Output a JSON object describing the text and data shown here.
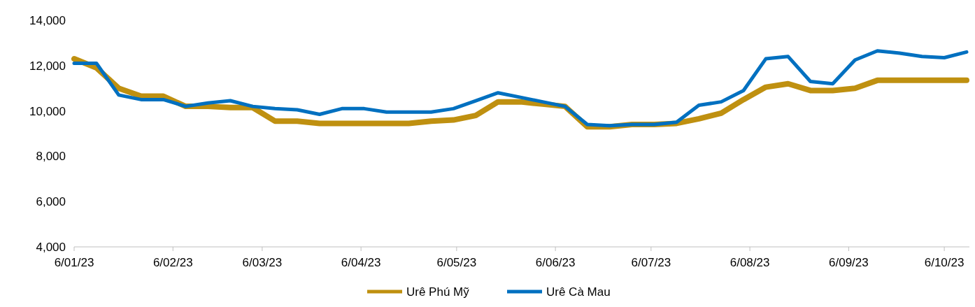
{
  "chart_data": {
    "type": "line",
    "x": [
      "2023-01-06",
      "2023-01-13",
      "2023-01-20",
      "2023-01-27",
      "2023-02-03",
      "2023-02-10",
      "2023-02-17",
      "2023-02-24",
      "2023-03-03",
      "2023-03-10",
      "2023-03-17",
      "2023-03-24",
      "2023-03-31",
      "2023-04-07",
      "2023-04-14",
      "2023-04-21",
      "2023-04-28",
      "2023-05-05",
      "2023-05-12",
      "2023-05-19",
      "2023-05-26",
      "2023-06-02",
      "2023-06-09",
      "2023-06-16",
      "2023-06-23",
      "2023-06-30",
      "2023-07-07",
      "2023-07-14",
      "2023-07-21",
      "2023-07-28",
      "2023-08-04",
      "2023-08-11",
      "2023-08-18",
      "2023-08-25",
      "2023-09-01",
      "2023-09-08",
      "2023-09-15",
      "2023-09-22",
      "2023-09-29",
      "2023-10-06",
      "2023-10-13"
    ],
    "series": [
      {
        "name": "Urê Phú Mỹ",
        "color": "#bf9010",
        "values": [
          12300,
          11900,
          11000,
          10650,
          10650,
          10200,
          10200,
          10150,
          10150,
          9550,
          9550,
          9450,
          9450,
          9450,
          9450,
          9450,
          9550,
          9600,
          9800,
          10400,
          10400,
          10300,
          10200,
          9300,
          9300,
          9400,
          9400,
          9450,
          9650,
          9900,
          10500,
          11050,
          11200,
          10900,
          10900,
          11000,
          11350,
          11350,
          11350,
          11350,
          11350
        ]
      },
      {
        "name": "Urê Cà Mau",
        "color": "#0070c0",
        "values": [
          12100,
          12100,
          10700,
          10500,
          10500,
          10200,
          10350,
          10450,
          10200,
          10100,
          10050,
          9850,
          10100,
          10100,
          9950,
          9950,
          9950,
          10100,
          10450,
          10800,
          10600,
          10400,
          10200,
          9400,
          9350,
          9400,
          9400,
          9500,
          10250,
          10400,
          10900,
          12300,
          12400,
          11300,
          11200,
          12250,
          12650,
          12550,
          12400,
          12350,
          12600
        ]
      }
    ],
    "xlim": [
      "2023-01-06",
      "2023-10-13"
    ],
    "xticks": [
      {
        "value": "2023-01-06",
        "label": "6/01/23"
      },
      {
        "value": "2023-02-06",
        "label": "6/02/23"
      },
      {
        "value": "2023-03-06",
        "label": "6/03/23"
      },
      {
        "value": "2023-04-06",
        "label": "6/04/23"
      },
      {
        "value": "2023-05-06",
        "label": "6/05/23"
      },
      {
        "value": "2023-06-06",
        "label": "6/06/23"
      },
      {
        "value": "2023-07-06",
        "label": "6/07/23"
      },
      {
        "value": "2023-08-06",
        "label": "6/08/23"
      },
      {
        "value": "2023-09-06",
        "label": "6/09/23"
      },
      {
        "value": "2023-10-06",
        "label": "6/10/23"
      }
    ],
    "ylim": [
      4000,
      14000
    ],
    "yticks": [
      {
        "value": 4000,
        "label": "4,000"
      },
      {
        "value": 6000,
        "label": "6,000"
      },
      {
        "value": 8000,
        "label": "8,000"
      },
      {
        "value": 10000,
        "label": "10,000"
      },
      {
        "value": 12000,
        "label": "12,000"
      },
      {
        "value": 14000,
        "label": "14,000"
      }
    ],
    "legend": "bottom",
    "line_style": "solid",
    "marker": "none"
  }
}
